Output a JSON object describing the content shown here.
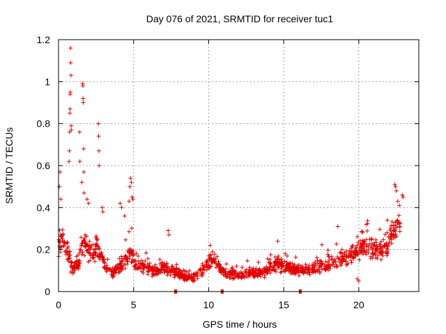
{
  "chart_data": {
    "type": "scatter",
    "title": "Day 076 of 2021, SRMTID for receiver tuc1",
    "xlabel": "GPS time / hours",
    "ylabel": "SRMTID / TECUs",
    "xlim": [
      0,
      24
    ],
    "ylim": [
      0,
      1.2
    ],
    "x_ticks": [
      0,
      5,
      10,
      15,
      20
    ],
    "x_tick_labels": [
      "0",
      "5",
      "10",
      "15",
      "20"
    ],
    "y_ticks": [
      0,
      0.2,
      0.4,
      0.6,
      0.8,
      1.0,
      1.2
    ],
    "y_tick_labels": [
      "0",
      "0.2",
      "0.4",
      "0.6",
      "0.8",
      "1",
      "1.2"
    ],
    "grid": true,
    "marker": "+",
    "color": "#e00000",
    "baseline_markers_x": [
      7.8,
      10.9,
      16.1
    ],
    "profile": {
      "x": [
        0,
        0.3,
        0.6,
        0.8,
        1.0,
        1.3,
        1.6,
        1.9,
        2.2,
        2.6,
        2.9,
        3.2,
        3.6,
        4.0,
        4.4,
        4.8,
        5.1,
        5.5,
        6.0,
        6.5,
        7.0,
        7.5,
        8.0,
        8.5,
        9.0,
        9.5,
        9.9,
        10.3,
        10.8,
        11.3,
        11.8,
        12.3,
        12.8,
        13.3,
        13.8,
        14.2,
        14.6,
        15.0,
        15.5,
        16.0,
        16.5,
        17.0,
        17.5,
        18.0,
        18.5,
        19.0,
        19.5,
        20.0,
        20.5,
        21.0,
        21.5,
        22.0,
        22.4,
        22.8
      ],
      "y": [
        0.22,
        0.26,
        0.18,
        0.12,
        0.11,
        0.13,
        0.24,
        0.22,
        0.18,
        0.2,
        0.16,
        0.1,
        0.09,
        0.11,
        0.14,
        0.2,
        0.13,
        0.12,
        0.11,
        0.1,
        0.11,
        0.1,
        0.08,
        0.07,
        0.07,
        0.09,
        0.13,
        0.16,
        0.1,
        0.08,
        0.08,
        0.08,
        0.09,
        0.09,
        0.1,
        0.12,
        0.13,
        0.12,
        0.11,
        0.1,
        0.1,
        0.11,
        0.12,
        0.13,
        0.14,
        0.16,
        0.18,
        0.2,
        0.21,
        0.2,
        0.19,
        0.23,
        0.29,
        0.35
      ],
      "spread": [
        0.06,
        0.08,
        0.08,
        0.05,
        0.05,
        0.07,
        0.09,
        0.08,
        0.07,
        0.09,
        0.07,
        0.04,
        0.03,
        0.04,
        0.06,
        0.08,
        0.05,
        0.04,
        0.04,
        0.04,
        0.04,
        0.04,
        0.03,
        0.03,
        0.03,
        0.03,
        0.05,
        0.06,
        0.03,
        0.03,
        0.03,
        0.03,
        0.03,
        0.03,
        0.04,
        0.05,
        0.05,
        0.04,
        0.04,
        0.03,
        0.03,
        0.04,
        0.05,
        0.05,
        0.05,
        0.06,
        0.06,
        0.07,
        0.07,
        0.07,
        0.07,
        0.08,
        0.09,
        0.09
      ],
      "samples": 1300
    },
    "outliers": [
      {
        "x": 0.05,
        "y": 0.5
      },
      {
        "x": 0.1,
        "y": 0.57
      },
      {
        "x": 0.15,
        "y": 0.44
      },
      {
        "x": 0.7,
        "y": 0.62
      },
      {
        "x": 0.72,
        "y": 0.67
      },
      {
        "x": 0.74,
        "y": 0.76
      },
      {
        "x": 0.75,
        "y": 0.85
      },
      {
        "x": 0.76,
        "y": 0.87
      },
      {
        "x": 0.77,
        "y": 0.94
      },
      {
        "x": 0.78,
        "y": 0.95
      },
      {
        "x": 0.8,
        "y": 1.16
      },
      {
        "x": 0.81,
        "y": 1.09
      },
      {
        "x": 0.83,
        "y": 1.03
      },
      {
        "x": 0.84,
        "y": 0.79
      },
      {
        "x": 0.85,
        "y": 0.77
      },
      {
        "x": 1.4,
        "y": 0.76
      },
      {
        "x": 1.42,
        "y": 0.62
      },
      {
        "x": 1.55,
        "y": 0.52
      },
      {
        "x": 1.6,
        "y": 0.99
      },
      {
        "x": 1.62,
        "y": 0.98
      },
      {
        "x": 1.63,
        "y": 0.92
      },
      {
        "x": 1.65,
        "y": 0.9
      },
      {
        "x": 1.67,
        "y": 0.68
      },
      {
        "x": 1.68,
        "y": 0.57
      },
      {
        "x": 1.7,
        "y": 0.47
      },
      {
        "x": 1.9,
        "y": 0.44
      },
      {
        "x": 2.0,
        "y": 0.42
      },
      {
        "x": 2.65,
        "y": 0.8
      },
      {
        "x": 2.67,
        "y": 0.74
      },
      {
        "x": 2.69,
        "y": 0.67
      },
      {
        "x": 2.7,
        "y": 0.6
      },
      {
        "x": 2.9,
        "y": 0.4
      },
      {
        "x": 2.95,
        "y": 0.38
      },
      {
        "x": 4.1,
        "y": 0.42
      },
      {
        "x": 4.2,
        "y": 0.4
      },
      {
        "x": 4.4,
        "y": 0.36
      },
      {
        "x": 4.75,
        "y": 0.5
      },
      {
        "x": 4.8,
        "y": 0.54
      },
      {
        "x": 4.85,
        "y": 0.52
      },
      {
        "x": 4.9,
        "y": 0.45
      },
      {
        "x": 4.95,
        "y": 0.44
      },
      {
        "x": 4.7,
        "y": 0.43
      },
      {
        "x": 7.3,
        "y": 0.29
      },
      {
        "x": 7.35,
        "y": 0.27
      },
      {
        "x": 10.1,
        "y": 0.22
      },
      {
        "x": 14.6,
        "y": 0.24
      },
      {
        "x": 18.6,
        "y": 0.31
      },
      {
        "x": 19.9,
        "y": 0.06
      },
      {
        "x": 20.0,
        "y": 0.05
      },
      {
        "x": 20.5,
        "y": 0.32
      },
      {
        "x": 21.9,
        "y": 0.34
      },
      {
        "x": 22.4,
        "y": 0.51
      },
      {
        "x": 22.45,
        "y": 0.5
      },
      {
        "x": 22.5,
        "y": 0.48
      },
      {
        "x": 22.6,
        "y": 0.43
      },
      {
        "x": 22.7,
        "y": 0.41
      },
      {
        "x": 22.9,
        "y": 0.46
      },
      {
        "x": 22.95,
        "y": 0.45
      }
    ]
  }
}
